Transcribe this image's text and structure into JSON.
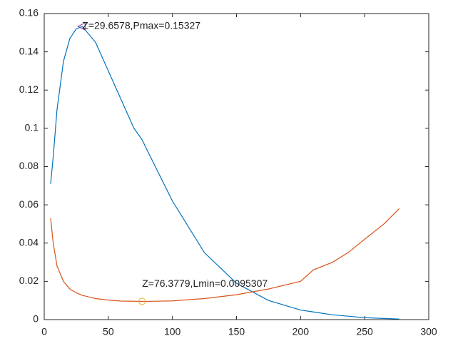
{
  "chart_data": {
    "type": "line",
    "x": [
      5,
      7,
      10,
      15,
      20,
      25,
      29.6578,
      40,
      50,
      60,
      70,
      76.3779,
      80,
      100,
      125,
      150,
      175,
      200,
      210,
      225,
      237,
      250,
      265,
      277
    ],
    "series": [
      {
        "color": "#0072bd",
        "values": [
          0.071,
          0.085,
          0.11,
          0.135,
          0.147,
          0.152,
          0.15327,
          0.145,
          0.13,
          0.115,
          0.1,
          0.094,
          0.089,
          0.062,
          0.035,
          0.019,
          0.01,
          0.005,
          0.004,
          0.0025,
          0.0018,
          0.001,
          0.0006,
          0.0003
        ]
      },
      {
        "color": "#d95319",
        "values": [
          0.053,
          0.04,
          0.028,
          0.02,
          0.016,
          0.014,
          0.0127,
          0.011,
          0.0102,
          0.0097,
          0.0096,
          0.0095307,
          0.00954,
          0.0098,
          0.011,
          0.013,
          0.016,
          0.02,
          0.026,
          0.03,
          0.035,
          0.042,
          0.05,
          0.058
        ]
      }
    ],
    "markers": [
      {
        "x": 29.6578,
        "y": 0.15327,
        "shape": "triangle",
        "color": "#7e2f8e",
        "label": "Z=29.6578,Pmax=0.15327"
      },
      {
        "x": 76.3779,
        "y": 0.0095307,
        "shape": "circle",
        "color": "#edb120",
        "label": "Z=76.3779,Lmin=0.0095307"
      }
    ],
    "xlim": [
      0,
      300
    ],
    "xticks": [
      0,
      50,
      100,
      150,
      200,
      250,
      300
    ],
    "ylim": [
      0,
      0.16
    ],
    "yticks": [
      0,
      0.02,
      0.04,
      0.06,
      0.08,
      0.1,
      0.12,
      0.14,
      0.16
    ]
  }
}
